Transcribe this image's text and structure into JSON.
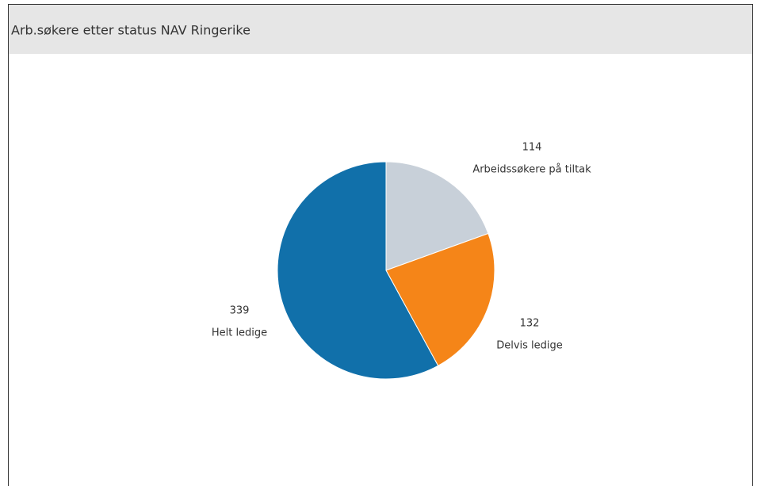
{
  "chart_data": {
    "type": "pie",
    "title": "Arb.søkere etter status NAV Ringerike",
    "categories": [
      "Arbeidssøkere på tiltak",
      "Delvis ledige",
      "Helt ledige"
    ],
    "values": [
      114,
      132,
      339
    ],
    "colors": [
      "#c8d0d9",
      "#f58518",
      "#1170aa"
    ]
  }
}
